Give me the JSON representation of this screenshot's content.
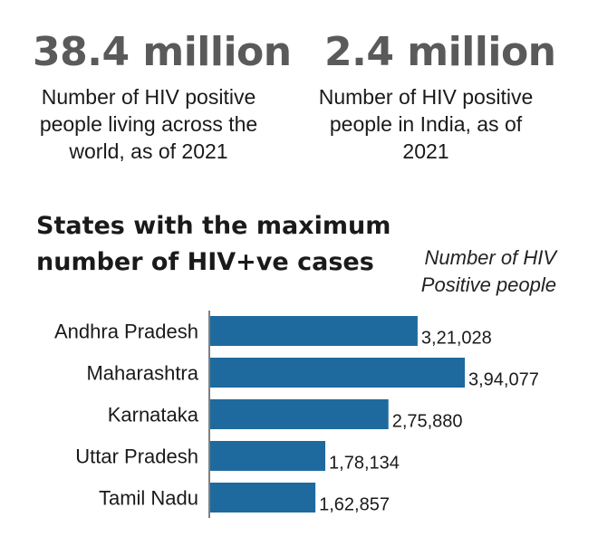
{
  "stats": [
    {
      "value": "38.4 million",
      "description": "Number of HIV positive people living across the world, as of 2021"
    },
    {
      "value": "2.4 million",
      "description": "Number of HIV positive people in India, as of 2021"
    }
  ],
  "chart_data": {
    "type": "bar",
    "orientation": "horizontal",
    "title": "States with the maximum number of HIV+ve cases",
    "value_label": "Number of HIV Positive people",
    "categories": [
      "Andhra Pradesh",
      "Maharashtra",
      "Karnataka",
      "Uttar Pradesh",
      "Tamil Nadu"
    ],
    "values": [
      321028,
      394077,
      275880,
      178134,
      162857
    ],
    "value_labels": [
      "3,21,028",
      "3,94,077",
      "2,75,880",
      "1,78,134",
      "1,62,857"
    ],
    "bar_color": "#1e6a9e",
    "axis_color": "#555555",
    "grid": false
  }
}
